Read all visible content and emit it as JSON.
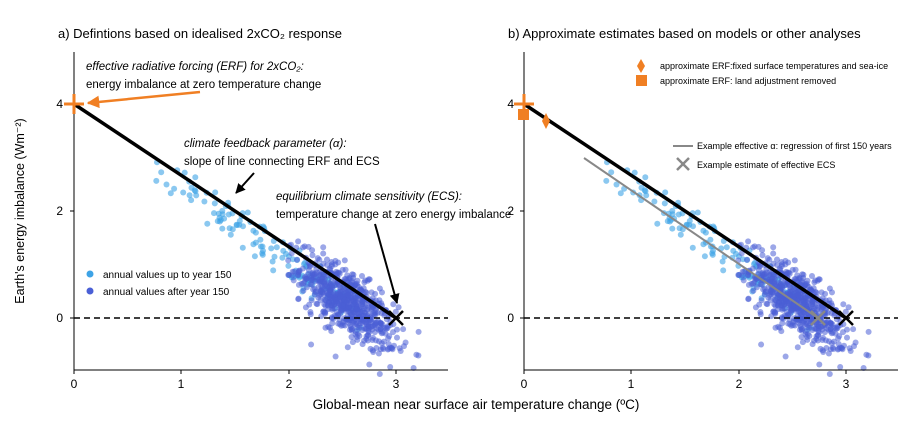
{
  "figure": {
    "xlabel": "Global-mean near surface air temperature change (ºC)",
    "ylabel": "Earth's energy imbalance (Wm⁻²)"
  },
  "colors": {
    "orange": "#f07f23",
    "early_points": "#3ea3e6",
    "late_points": "#4a5fd6",
    "fit_line": "#000000",
    "regression_line": "#888888",
    "ecs_marker_b": "#888888"
  },
  "chart_data": [
    {
      "type": "scatter",
      "title": "a) Defintions based on idealised 2xCO₂ response",
      "xlim": [
        0,
        3.5
      ],
      "ylim": [
        -1.0,
        5.0
      ],
      "xticks": [
        0,
        1,
        2,
        3
      ],
      "yticks": [
        0,
        2,
        4
      ],
      "erf_point": [
        0,
        4.0
      ],
      "ecs_point": [
        3.0,
        0.0
      ],
      "line": {
        "x": [
          0,
          3.0
        ],
        "y": [
          4.0,
          0.0
        ]
      },
      "legend": [
        {
          "label": "annual values up to year 150",
          "color": "#3ea3e6"
        },
        {
          "label": "annual values after year 150",
          "color": "#4a5fd6"
        }
      ],
      "annotations": [
        {
          "id": "erf",
          "line1": "effective radiative forcing (ERF) for 2xCO₂:",
          "line2": "energy imbalance at zero temperature change"
        },
        {
          "id": "feedback",
          "line1": "climate feedback parameter (α):",
          "line2": "slope of line connecting ERF and ECS"
        },
        {
          "id": "ecs",
          "line1": "equilibrium climate sensitivity (ECS):",
          "line2": "temperature change at zero energy imbalance"
        }
      ]
    },
    {
      "type": "scatter",
      "title": "b) Approximate estimates based on models or other analyses",
      "xlim": [
        0,
        3.5
      ],
      "ylim": [
        -1.0,
        5.0
      ],
      "xticks": [
        0,
        1,
        2,
        3
      ],
      "yticks": [
        0,
        2,
        4
      ],
      "erf_point": [
        0,
        4.0
      ],
      "ecs_point": [
        3.0,
        0.0
      ],
      "line": {
        "x": [
          0,
          3.0
        ],
        "y": [
          4.0,
          0.0
        ]
      },
      "regression_line": {
        "x": [
          0.55,
          2.75
        ],
        "y": [
          3.0,
          0.0
        ]
      },
      "effective_ecs": [
        2.75,
        0.0
      ],
      "erf_fixed_sst": [
        0.2,
        3.68
      ],
      "erf_land_adjustment_removed": [
        0.0,
        3.8
      ],
      "legend": [
        {
          "label": "approximate ERF:fixed surface temperatures and sea-ice",
          "marker": "diamond"
        },
        {
          "label": "approximate ERF: land adjustment removed",
          "marker": "square"
        },
        {
          "label": "Example effective α: regression of first 150 years",
          "marker": "line"
        },
        {
          "label": "Example estimate of effective ECS",
          "marker": "x"
        }
      ]
    }
  ]
}
